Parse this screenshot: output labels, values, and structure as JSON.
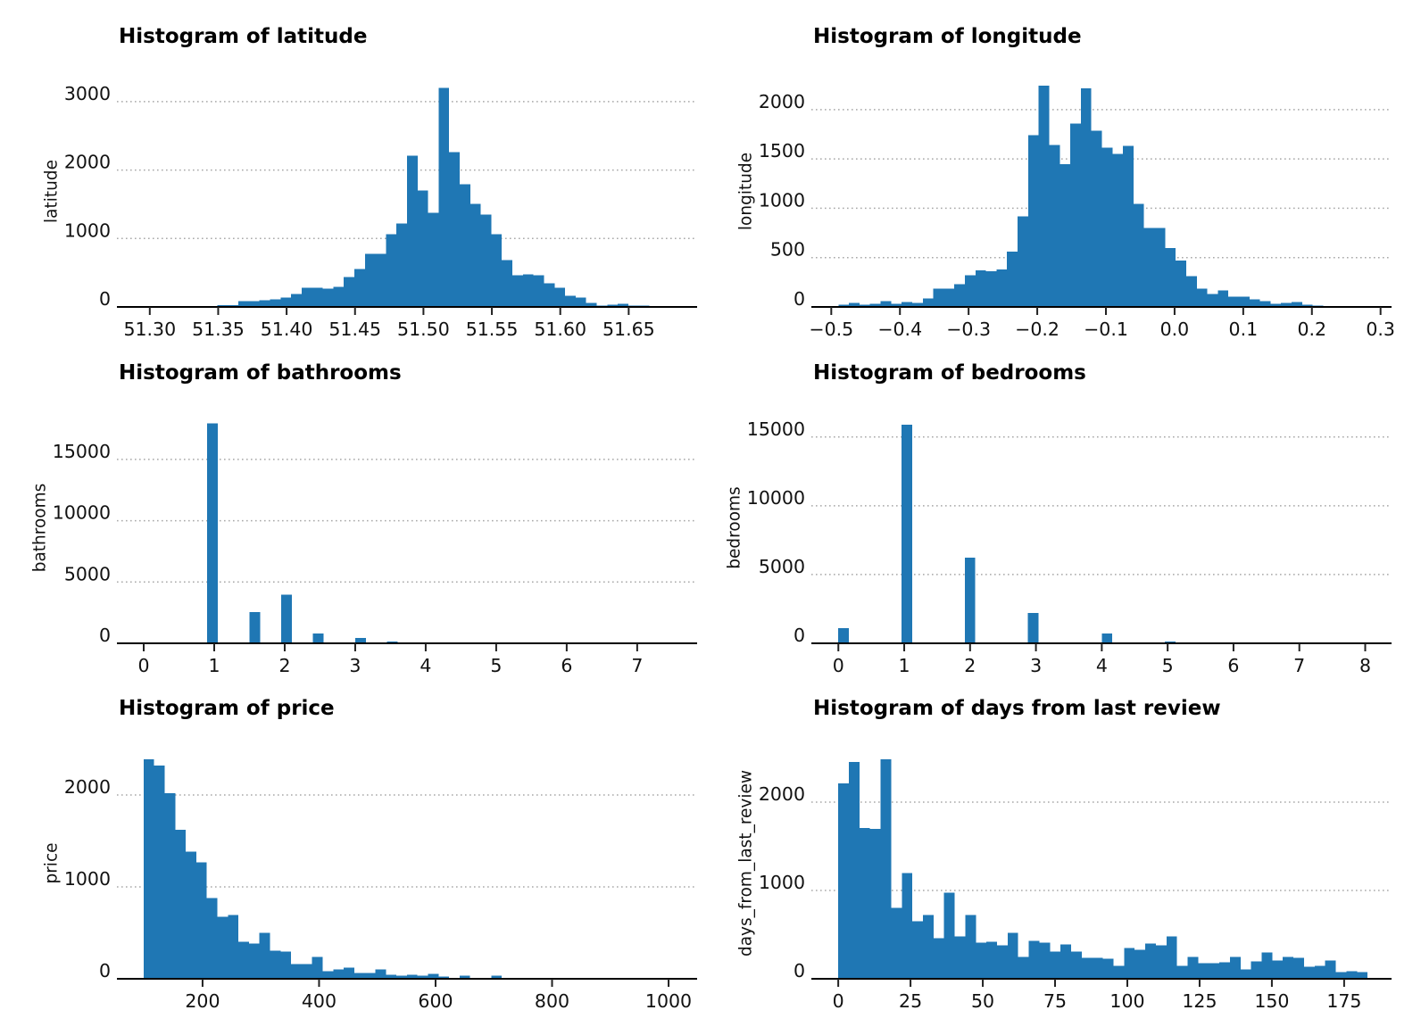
{
  "chart_data": [
    {
      "type": "bar",
      "title": "Histogram of latitude",
      "ylabel": "latitude",
      "xlim": [
        51.276,
        51.7
      ],
      "ylim": [
        0,
        3377
      ],
      "grid": "horizontal-dotted",
      "bar_color": "#1f77b4",
      "xticks": [
        51.3,
        51.35,
        51.4,
        51.45,
        51.5,
        51.55,
        51.6,
        51.65
      ],
      "xtick_labels": [
        "51.30",
        "51.35",
        "51.40",
        "51.45",
        "51.50",
        "51.55",
        "51.60",
        "51.65"
      ],
      "yticks": [
        0,
        1000,
        2000,
        3000
      ],
      "ytick_labels": [
        "0",
        "1000",
        "2000",
        "3000"
      ],
      "bins": {
        "start": 51.3494,
        "width": 0.0077,
        "counts": [
          26,
          26,
          87,
          87,
          100,
          113,
          139,
          191,
          278,
          278,
          265,
          291,
          439,
          557,
          774,
          774,
          1061,
          1217,
          2209,
          1700,
          1374,
          3200,
          2261,
          1791,
          1504,
          1348,
          1061,
          683,
          461,
          474,
          461,
          343,
          278,
          161,
          135,
          57,
          17,
          30,
          43,
          17,
          17
        ]
      }
    },
    {
      "type": "bar",
      "title": "Histogram of longitude",
      "ylabel": "longitude",
      "xlim": [
        -0.529,
        0.316
      ],
      "ylim": [
        0,
        2342
      ],
      "grid": "horizontal-dotted",
      "bar_color": "#1f77b4",
      "xticks": [
        -0.5,
        -0.4,
        -0.3,
        -0.2,
        -0.1,
        0.0,
        0.1,
        0.2,
        0.3
      ],
      "xtick_labels": [
        "−0.5",
        "−0.4",
        "−0.3",
        "−0.2",
        "−0.1",
        "0.0",
        "0.1",
        "0.2",
        "0.3"
      ],
      "yticks": [
        0,
        500,
        1000,
        1500,
        2000
      ],
      "ytick_labels": [
        "0",
        "500",
        "1000",
        "1500",
        "2000"
      ],
      "bins": {
        "start": -0.4896,
        "width": 0.01535,
        "counts": [
          21,
          40,
          21,
          30,
          58,
          30,
          49,
          40,
          85,
          186,
          186,
          232,
          323,
          369,
          360,
          378,
          561,
          918,
          1741,
          2244,
          1640,
          1448,
          1860,
          2216,
          1787,
          1613,
          1549,
          1631,
          1046,
          799,
          799,
          598,
          470,
          314,
          186,
          131,
          168,
          104,
          104,
          76,
          58,
          30,
          40,
          49,
          21,
          12
        ]
      }
    },
    {
      "type": "bar",
      "title": "Histogram of bathrooms",
      "ylabel": "bathrooms",
      "xlim": [
        -0.38,
        7.85
      ],
      "ylim": [
        0,
        18850
      ],
      "grid": "horizontal-dotted",
      "bar_color": "#1f77b4",
      "xticks": [
        0,
        1,
        2,
        3,
        4,
        5,
        6,
        7
      ],
      "xtick_labels": [
        "0",
        "1",
        "2",
        "3",
        "4",
        "5",
        "6",
        "7"
      ],
      "yticks": [
        0,
        5000,
        10000,
        15000
      ],
      "ytick_labels": [
        "0",
        "5000",
        "10000",
        "15000"
      ],
      "bins": {
        "start": 0,
        "width": 0.15,
        "counts": [
          0,
          0,
          0,
          75,
          0,
          0,
          17930,
          0,
          0,
          0,
          2560,
          0,
          0,
          3950,
          0,
          0,
          800,
          0,
          0,
          0,
          440,
          0,
          0,
          150,
          0,
          0,
          0,
          0,
          0,
          0,
          0,
          0,
          0,
          0,
          0,
          0,
          0,
          0,
          0,
          0,
          0,
          0,
          0,
          0,
          0,
          0,
          0,
          0,
          0,
          0
        ]
      }
    },
    {
      "type": "bar",
      "title": "Histogram of bedrooms",
      "ylabel": "bedrooms",
      "xlim": [
        -0.41,
        8.4
      ],
      "ylim": [
        0,
        16800
      ],
      "grid": "horizontal-dotted",
      "bar_color": "#1f77b4",
      "xticks": [
        0,
        1,
        2,
        3,
        4,
        5,
        6,
        7,
        8
      ],
      "xtick_labels": [
        "0",
        "1",
        "2",
        "3",
        "4",
        "5",
        "6",
        "7",
        "8"
      ],
      "yticks": [
        0,
        5000,
        10000,
        15000
      ],
      "ytick_labels": [
        "0",
        "5000",
        "10000",
        "15000"
      ],
      "bins": {
        "start": 0,
        "width": 0.16,
        "counts": [
          1100,
          0,
          0,
          0,
          0,
          0,
          15900,
          0,
          0,
          0,
          0,
          0,
          6230,
          0,
          0,
          0,
          0,
          0,
          2200,
          0,
          0,
          0,
          0,
          0,
          0,
          715,
          0,
          0,
          0,
          0,
          0,
          130,
          0,
          0,
          0,
          0,
          0,
          0,
          0,
          0,
          0,
          0,
          0,
          0,
          0,
          0,
          0,
          0,
          0,
          0
        ]
      }
    },
    {
      "type": "bar",
      "title": "Histogram of price",
      "ylabel": "price",
      "xlim": [
        53,
        1049
      ],
      "ylim": [
        0,
        2515
      ],
      "grid": "horizontal-dotted",
      "bar_color": "#1f77b4",
      "xticks": [
        200,
        400,
        600,
        800,
        1000
      ],
      "xtick_labels": [
        "200",
        "400",
        "600",
        "800",
        "1000"
      ],
      "yticks": [
        0,
        1000,
        2000
      ],
      "ytick_labels": [
        "0",
        "1000",
        "2000"
      ],
      "bins": {
        "start": 98.8,
        "width": 18.08,
        "counts": [
          2390,
          2321,
          2019,
          1620,
          1386,
          1269,
          880,
          675,
          695,
          403,
          383,
          500,
          305,
          295,
          159,
          159,
          237,
          81,
          101,
          120,
          62,
          62,
          101,
          42,
          32,
          42,
          32,
          52,
          23,
          10,
          32,
          10,
          10,
          32,
          0,
          0,
          10,
          10,
          10,
          0,
          0,
          0,
          0,
          0,
          0,
          0,
          0,
          0,
          0,
          10
        ]
      }
    },
    {
      "type": "bar",
      "title": "Histogram of days from last review",
      "ylabel": "days_from_last_review",
      "xlim": [
        -9.3,
        191.4
      ],
      "ylim": [
        0,
        2616
      ],
      "grid": "horizontal-dotted",
      "bar_color": "#1f77b4",
      "xticks": [
        0,
        25,
        50,
        75,
        100,
        125,
        150,
        175
      ],
      "xtick_labels": [
        "0",
        "25",
        "50",
        "75",
        "100",
        "125",
        "150",
        "175"
      ],
      "yticks": [
        0,
        1000,
        2000
      ],
      "ytick_labels": [
        "0",
        "1000",
        "2000"
      ],
      "bins": {
        "start": 0,
        "width": 3.662,
        "counts": [
          2213,
          2456,
          1706,
          1696,
          2486,
          804,
          1199,
          652,
          723,
          459,
          976,
          480,
          723,
          409,
          419,
          378,
          520,
          247,
          429,
          409,
          307,
          389,
          307,
          236,
          236,
          226,
          145,
          348,
          328,
          399,
          378,
          480,
          145,
          247,
          176,
          176,
          186,
          247,
          105,
          196,
          297,
          206,
          247,
          236,
          135,
          145,
          206,
          74,
          84,
          74
        ]
      }
    }
  ]
}
